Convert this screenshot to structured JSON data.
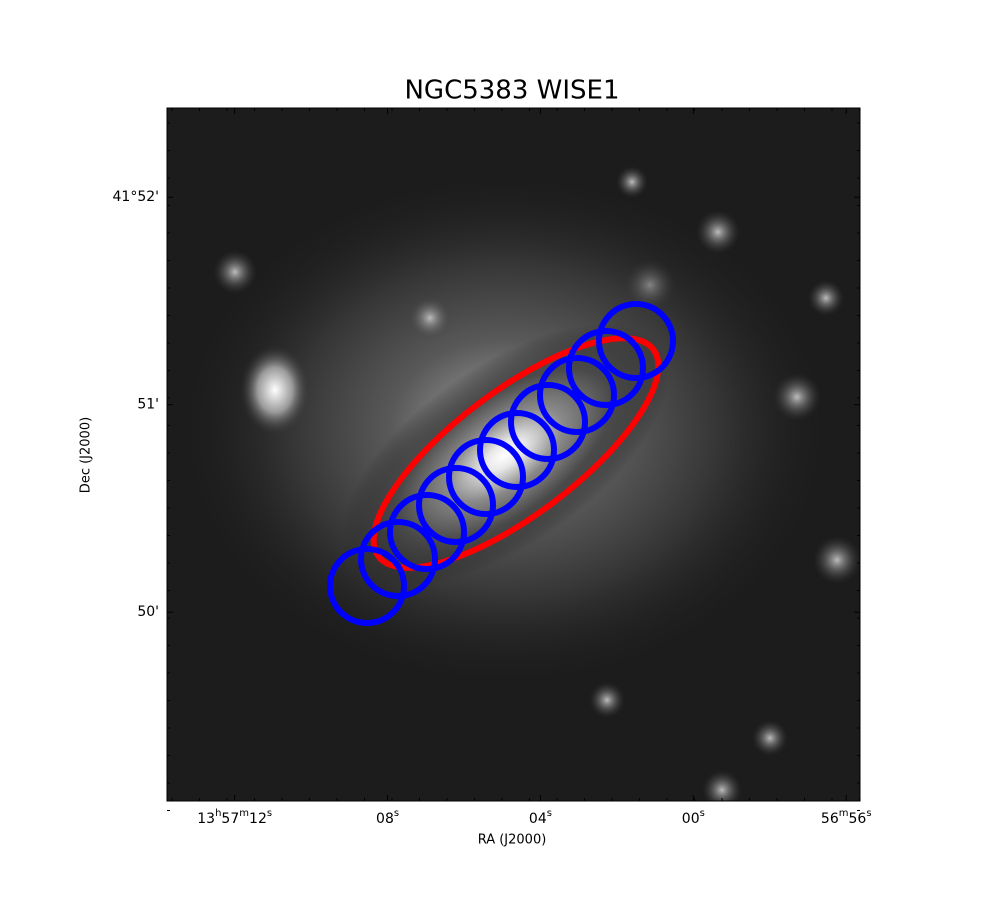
{
  "chart_data": {
    "type": "image",
    "title": "NGC5383    WISE1",
    "xlabel": "RA (J2000)",
    "ylabel": "Dec (J2000)",
    "xlim": [
      73.77,
      55.64
    ],
    "xticks": [
      {
        "value": 72,
        "label": "13h57m12s"
      },
      {
        "value": 68,
        "label": "08s"
      },
      {
        "value": 64,
        "label": "04s"
      },
      {
        "value": 60,
        "label": "00s"
      },
      {
        "value": 56,
        "label": "56m56s"
      }
    ],
    "ylim": [
      49.09,
      52.43
    ],
    "yticks": [
      {
        "value": 50,
        "label": "50'"
      },
      {
        "value": 51,
        "label": "51'"
      },
      {
        "value": 52,
        "label": "41°52'"
      }
    ]
  }
}
